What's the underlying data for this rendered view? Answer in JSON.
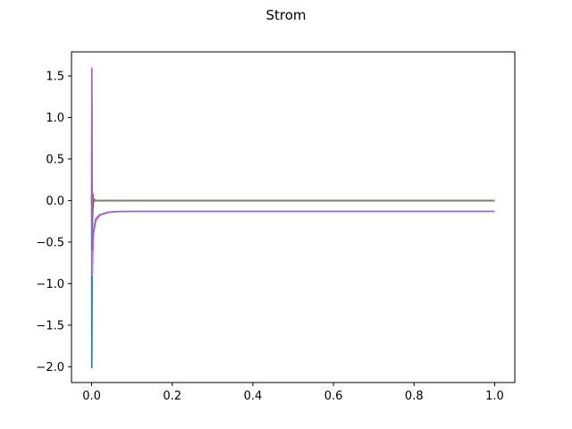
{
  "chart_data": {
    "type": "line",
    "title": "Strom",
    "xlabel": "",
    "ylabel": "",
    "xlim": [
      -0.05,
      1.05
    ],
    "ylim": [
      -2.19,
      1.79
    ],
    "x_ticks": [
      0.0,
      0.2,
      0.4,
      0.6,
      0.8,
      1.0
    ],
    "x_tick_labels": [
      "0.0",
      "0.2",
      "0.4",
      "0.6",
      "0.8",
      "1.0"
    ],
    "y_ticks": [
      1.5,
      1.0,
      0.5,
      0.0,
      -0.5,
      -1.0,
      -1.5,
      -2.0
    ],
    "y_tick_labels": [
      "1.5",
      "1.0",
      "0.5",
      "0.0",
      "−0.5",
      "−1.0",
      "−1.5",
      "−2.0"
    ],
    "grid": false,
    "legend": "none",
    "series": [
      {
        "color": "#1f77b4",
        "x": [
          0.0,
          0.0005,
          0.001,
          0.0015,
          0.002,
          0.003,
          0.005,
          1.0
        ],
        "y": [
          0.0,
          -2.01,
          -1.2,
          -0.4,
          -0.05,
          0.0,
          0.0,
          0.0
        ]
      },
      {
        "color": "#ff7f0e",
        "x": [
          0.0,
          0.001,
          0.002,
          0.005,
          1.0
        ],
        "y": [
          0.0,
          0.05,
          -0.05,
          0.0,
          0.0
        ]
      },
      {
        "color": "#2ca02c",
        "x": [
          0.0,
          0.001,
          0.002,
          0.005,
          1.0
        ],
        "y": [
          0.0,
          0.1,
          -0.1,
          0.0,
          0.0
        ]
      },
      {
        "color": "#d62728",
        "x": [
          0.0,
          0.001,
          0.002,
          0.005,
          1.0
        ],
        "y": [
          0.0,
          -0.1,
          0.1,
          0.0,
          0.0
        ]
      },
      {
        "color": "#e377c2",
        "x": [
          0.0,
          0.0005,
          0.001,
          0.0015,
          0.002,
          0.003,
          0.004,
          0.005,
          0.01,
          0.02,
          0.04,
          0.06,
          0.1,
          1.0
        ],
        "y": [
          0.0,
          1.6,
          1.0,
          -0.3,
          -0.9,
          -0.7,
          -0.5,
          -0.4,
          -0.25,
          -0.18,
          -0.145,
          -0.135,
          -0.13,
          -0.13
        ]
      },
      {
        "color": "#8c564b",
        "x": [
          0.0,
          0.001,
          0.002,
          0.003,
          0.005,
          0.01,
          1.0
        ],
        "y": [
          0.0,
          0.15,
          -0.3,
          -0.1,
          0.02,
          0.0,
          0.0
        ]
      },
      {
        "color": "#7f7f7f",
        "x": [
          0.0,
          0.001,
          0.002,
          0.005,
          0.01,
          1.0
        ],
        "y": [
          0.0,
          -0.05,
          0.05,
          0.0,
          0.0,
          0.0
        ]
      },
      {
        "color": "#9467bd",
        "x": [
          0.0,
          0.0005,
          0.001,
          0.0015,
          0.002,
          0.003,
          0.005,
          0.01,
          0.02,
          0.04,
          0.06,
          0.1,
          1.0
        ],
        "y": [
          0.0,
          1.58,
          0.6,
          -0.5,
          -0.6,
          -0.45,
          -0.35,
          -0.22,
          -0.17,
          -0.14,
          -0.132,
          -0.13,
          -0.13
        ]
      }
    ]
  }
}
